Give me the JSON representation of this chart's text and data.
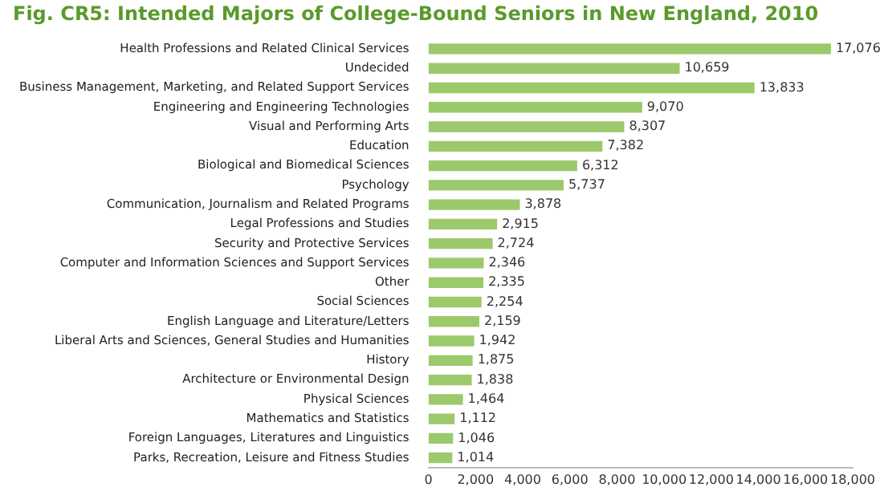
{
  "chart_data": {
    "type": "bar",
    "orientation": "horizontal",
    "title": "Fig. CR5: Intended Majors of College-Bound Seniors in New England, 2010",
    "categories": [
      "Health Professions and Related Clinical Services",
      "Undecided",
      "Business Management, Marketing, and Related Support Services",
      "Engineering and Engineering Technologies",
      "Visual and Performing Arts",
      "Education",
      "Biological and Biomedical Sciences",
      "Psychology",
      "Communication, Journalism and Related Programs",
      "Legal Professions and Studies",
      "Security and Protective Services",
      "Computer and Information Sciences and Support Services",
      "Other",
      "Social Sciences",
      "English Language and Literature/Letters",
      "Liberal Arts and Sciences, General Studies and Humanities",
      "History",
      "Architecture or Environmental Design",
      "Physical Sciences",
      "Mathematics and Statistics",
      "Foreign Languages, Literatures and Linguistics",
      "Parks, Recreation, Leisure and Fitness Studies"
    ],
    "values": [
      17076,
      10659,
      13833,
      9070,
      8307,
      7382,
      6312,
      5737,
      3878,
      2915,
      2724,
      2346,
      2335,
      2254,
      2159,
      1942,
      1875,
      1838,
      1464,
      1112,
      1046,
      1014
    ],
    "value_labels": [
      "17,076",
      "10,659",
      "13,833",
      "9,070",
      "8,307",
      "7,382",
      "6,312",
      "5,737",
      "3,878",
      "2,915",
      "2,724",
      "2,346",
      "2,335",
      "2,254",
      "2,159",
      "1,942",
      "1,875",
      "1,838",
      "1,464",
      "1,112",
      "1,046",
      "1,014"
    ],
    "color": "#9cc96b",
    "xlim": [
      0,
      18000
    ],
    "xticks": [
      0,
      {
        "value": 2000,
        "label": "2,000"
      },
      {
        "value": 4000,
        "label": "4,000"
      },
      {
        "value": 6000,
        "label": "6,000"
      },
      {
        "value": 8000,
        "label": "8,000"
      },
      {
        "value": 10000,
        "label": "10,000"
      },
      {
        "value": 12000,
        "label": "12,000"
      },
      {
        "value": 14000,
        "label": "14,000"
      },
      {
        "value": 16000,
        "label": "16,000"
      },
      {
        "value": 18000,
        "label": "18,000"
      }
    ],
    "grid": false,
    "legend": false
  }
}
